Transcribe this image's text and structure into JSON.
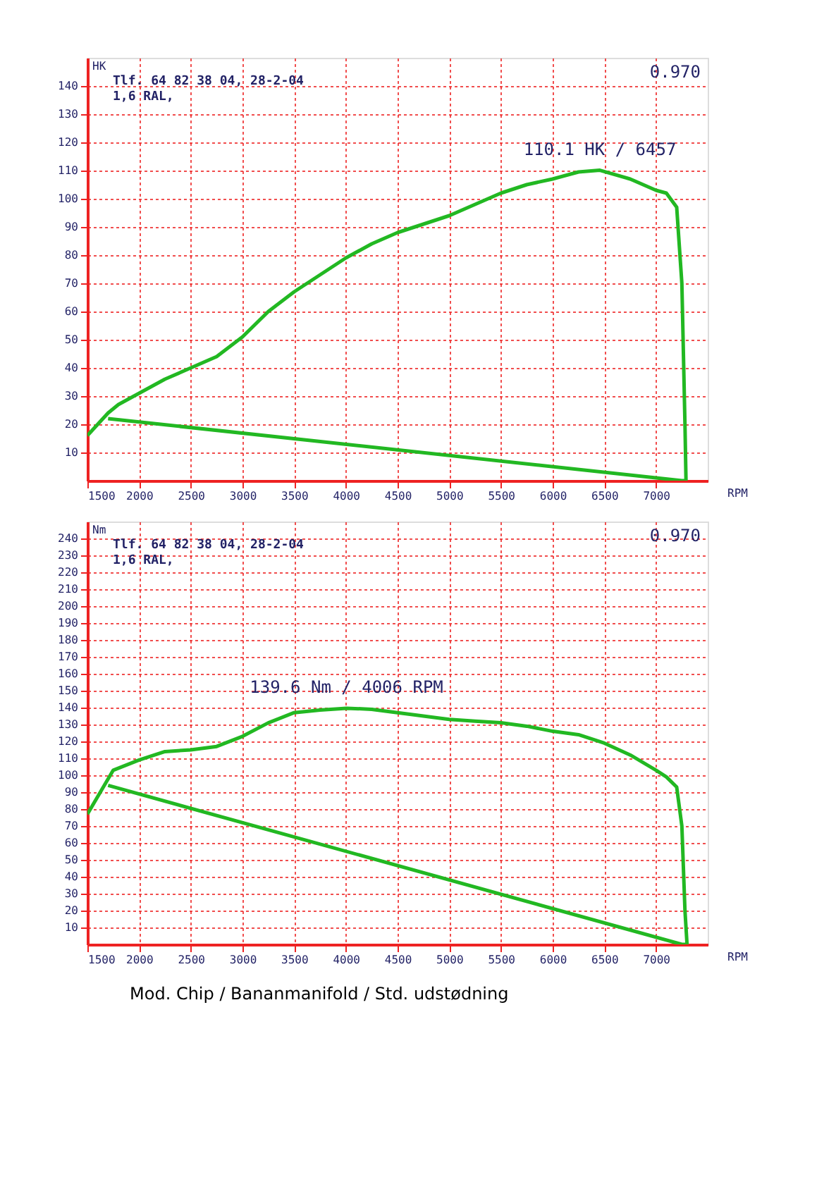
{
  "chart_data": [
    {
      "type": "line",
      "ylabel": "HK",
      "xlabel": "RPM",
      "xlim": [
        1500,
        7500
      ],
      "ylim": [
        0,
        150
      ],
      "xticks": [
        1500,
        2000,
        2500,
        3000,
        3500,
        4000,
        4500,
        5000,
        5500,
        6000,
        6500,
        7000
      ],
      "yticks": [
        10,
        20,
        30,
        40,
        50,
        60,
        70,
        80,
        90,
        100,
        110,
        120,
        130,
        140
      ],
      "grid": true,
      "x": [
        1500,
        1700,
        1800,
        2000,
        2250,
        2500,
        2750,
        3000,
        3250,
        3500,
        3750,
        4000,
        4250,
        4500,
        4750,
        5000,
        5250,
        5500,
        5750,
        6000,
        6250,
        6457,
        6750,
        7000,
        7100,
        7200,
        7250,
        7280,
        7290,
        7250,
        1700
      ],
      "series": [
        {
          "color": "#22b822",
          "values": [
            16,
            24,
            27,
            31,
            36,
            40,
            44,
            51,
            60,
            67,
            73,
            79,
            84,
            88,
            91,
            94,
            98,
            102,
            105,
            107,
            109.5,
            110.1,
            107,
            103,
            102,
            97,
            70,
            20,
            0,
            0,
            22
          ]
        }
      ],
      "annotations": [
        "Tlf. 64 82 38 04, 28-2-04",
        "1,6 RAL,",
        "0.970",
        {
          "text": "110.1 HK / 6457",
          "x": 6457,
          "y": 110.1
        }
      ]
    },
    {
      "type": "line",
      "ylabel": "Nm",
      "xlabel": "RPM",
      "xlim": [
        1500,
        7500
      ],
      "ylim": [
        0,
        250
      ],
      "xticks": [
        1500,
        2000,
        2500,
        3000,
        3500,
        4000,
        4500,
        5000,
        5500,
        6000,
        6500,
        7000
      ],
      "yticks": [
        10,
        20,
        30,
        40,
        50,
        60,
        70,
        80,
        90,
        100,
        110,
        120,
        130,
        140,
        150,
        160,
        170,
        180,
        190,
        200,
        210,
        220,
        230,
        240
      ],
      "grid": true,
      "x": [
        1500,
        1750,
        2000,
        2250,
        2500,
        2750,
        3000,
        3250,
        3500,
        3750,
        4006,
        4250,
        4500,
        4750,
        5000,
        5250,
        5500,
        5750,
        6000,
        6250,
        6500,
        6750,
        7000,
        7100,
        7200,
        7250,
        7280,
        7300,
        7250,
        1700
      ],
      "series": [
        {
          "color": "#22b822",
          "values": [
            77,
            103,
            109,
            114,
            115,
            117,
            123,
            131,
            137,
            138.5,
            139.6,
            139,
            137,
            135,
            133,
            132,
            131,
            129,
            126,
            124,
            119,
            112,
            103,
            99,
            93,
            70,
            20,
            0,
            0,
            94
          ]
        }
      ],
      "annotations": [
        "Tlf. 64 82 38 04, 28-2-04",
        "1,6 RAL,",
        "0.970",
        {
          "text": "139.6 Nm / 4006 RPM",
          "x": 4006,
          "y": 139.6
        },
        "Mod. Chip / Bananmanifold / Std. udstødning"
      ]
    }
  ]
}
